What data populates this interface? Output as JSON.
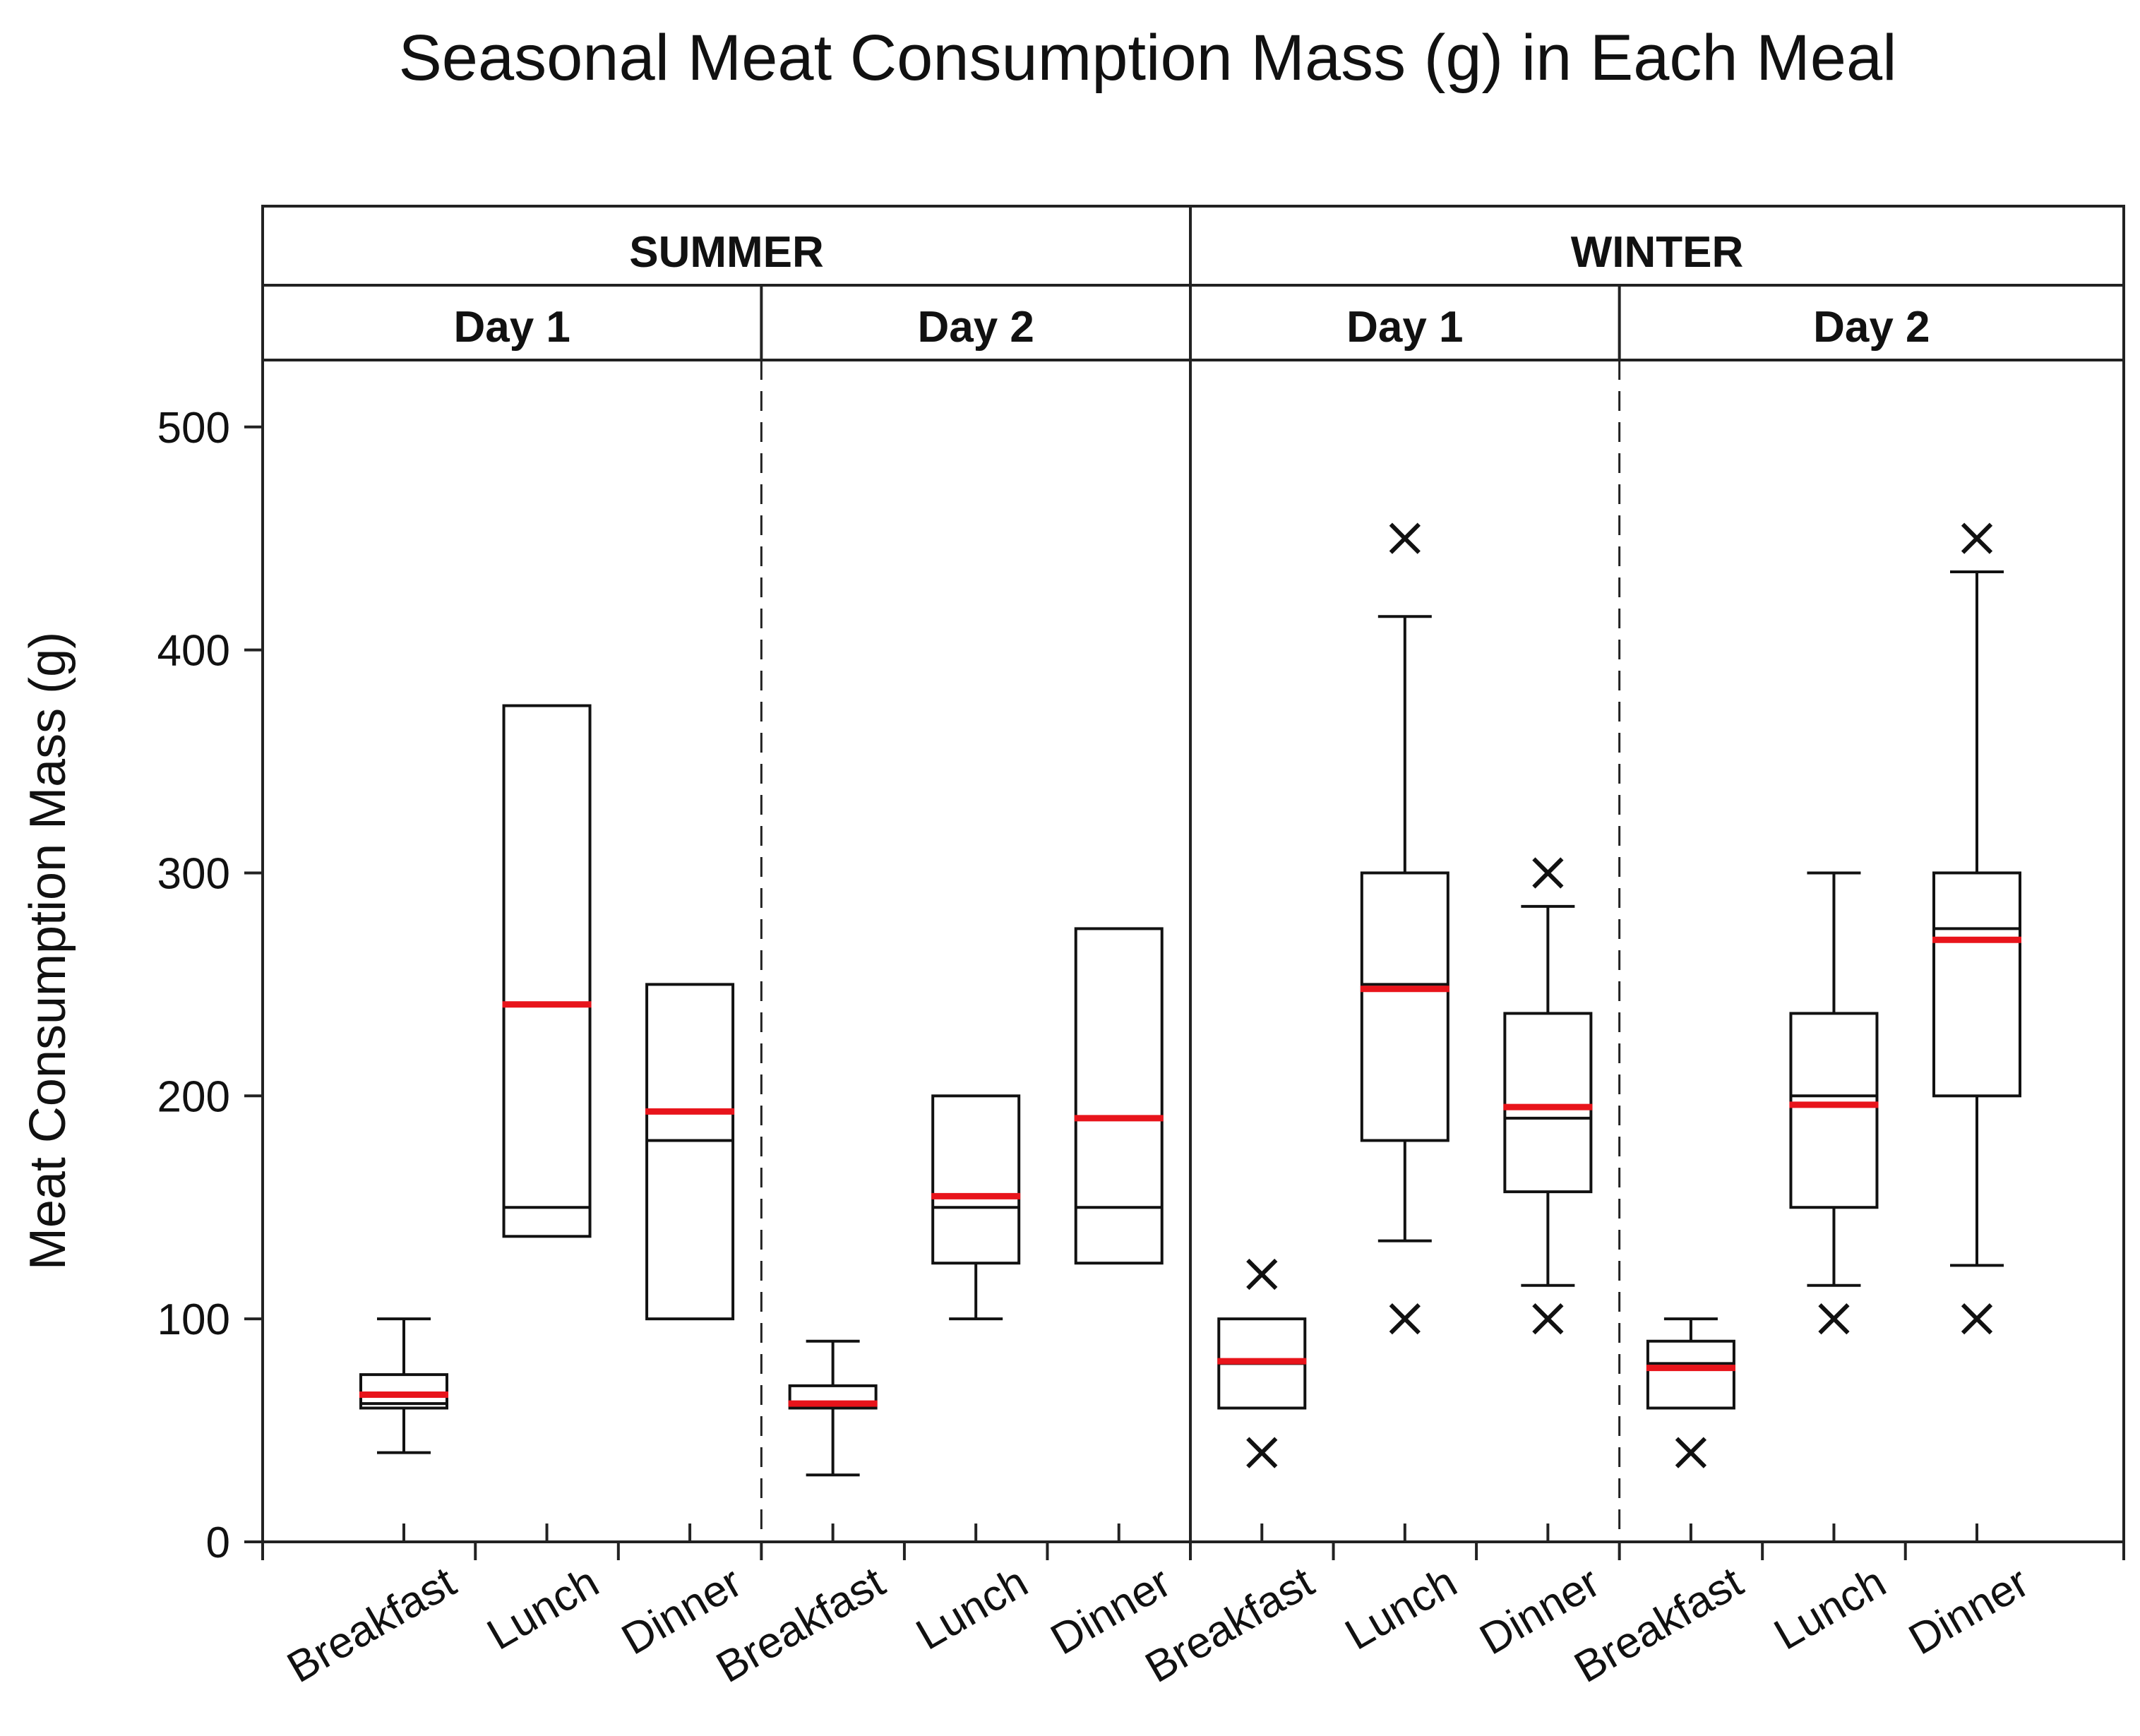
{
  "chart_data": {
    "type": "boxplot",
    "title": "Seasonal Meat Consumption Mass (g) in Each Meal",
    "ylabel": "Meat Consumption Mass (g)",
    "xlabel": "",
    "ylim": [
      0,
      530
    ],
    "yticks": [
      0,
      100,
      200,
      300,
      400,
      500
    ],
    "seasons": [
      {
        "name": "SUMMER",
        "days": [
          {
            "name": "Day 1",
            "meals": [
              {
                "meal": "Breakfast",
                "whisker_low": 40,
                "q1": 60,
                "median": 62,
                "q3": 75,
                "whisker_high": 100,
                "mean": 66,
                "outliers": []
              },
              {
                "meal": "Lunch",
                "whisker_low": null,
                "q1": 137,
                "median": 150,
                "q3": 375,
                "whisker_high": null,
                "mean": 241,
                "outliers": []
              },
              {
                "meal": "Dinner",
                "whisker_low": null,
                "q1": 100,
                "median": 180,
                "q3": 250,
                "whisker_high": null,
                "mean": 193,
                "outliers": []
              }
            ]
          },
          {
            "name": "Day 2",
            "meals": [
              {
                "meal": "Breakfast",
                "whisker_low": 30,
                "q1": 60,
                "median": 62,
                "q3": 70,
                "whisker_high": 90,
                "mean": 62,
                "outliers": []
              },
              {
                "meal": "Lunch",
                "whisker_low": 100,
                "q1": 125,
                "median": 150,
                "q3": 200,
                "whisker_high": null,
                "mean": 155,
                "outliers": []
              },
              {
                "meal": "Dinner",
                "whisker_low": null,
                "q1": 125,
                "median": 150,
                "q3": 275,
                "whisker_high": null,
                "mean": 190,
                "outliers": []
              }
            ]
          }
        ]
      },
      {
        "name": "WINTER",
        "days": [
          {
            "name": "Day 1",
            "meals": [
              {
                "meal": "Breakfast",
                "whisker_low": null,
                "q1": 60,
                "median": 80,
                "q3": 100,
                "whisker_high": null,
                "mean": 81,
                "outliers": [
                  40,
                  120
                ]
              },
              {
                "meal": "Lunch",
                "whisker_low": 135,
                "q1": 180,
                "median": 250,
                "q3": 300,
                "whisker_high": 415,
                "mean": 248,
                "outliers": [
                  100,
                  450
                ]
              },
              {
                "meal": "Dinner",
                "whisker_low": 115,
                "q1": 157,
                "median": 190,
                "q3": 237,
                "whisker_high": 285,
                "mean": 195,
                "outliers": [
                  100,
                  300
                ]
              }
            ]
          },
          {
            "name": "Day 2",
            "meals": [
              {
                "meal": "Breakfast",
                "whisker_low": null,
                "q1": 60,
                "median": 80,
                "q3": 90,
                "whisker_high": 100,
                "mean": 78,
                "outliers": [
                  40
                ]
              },
              {
                "meal": "Lunch",
                "whisker_low": 115,
                "q1": 150,
                "median": 200,
                "q3": 237,
                "whisker_high": 300,
                "mean": 196,
                "outliers": [
                  100
                ]
              },
              {
                "meal": "Dinner",
                "whisker_low": 124,
                "q1": 200,
                "median": 275,
                "q3": 300,
                "whisker_high": 435,
                "mean": 270,
                "outliers": [
                  100,
                  450
                ]
              }
            ]
          }
        ]
      }
    ],
    "colors": {
      "mean_line": "#e8141b",
      "box": "#111111",
      "outlier": "#111111"
    }
  }
}
